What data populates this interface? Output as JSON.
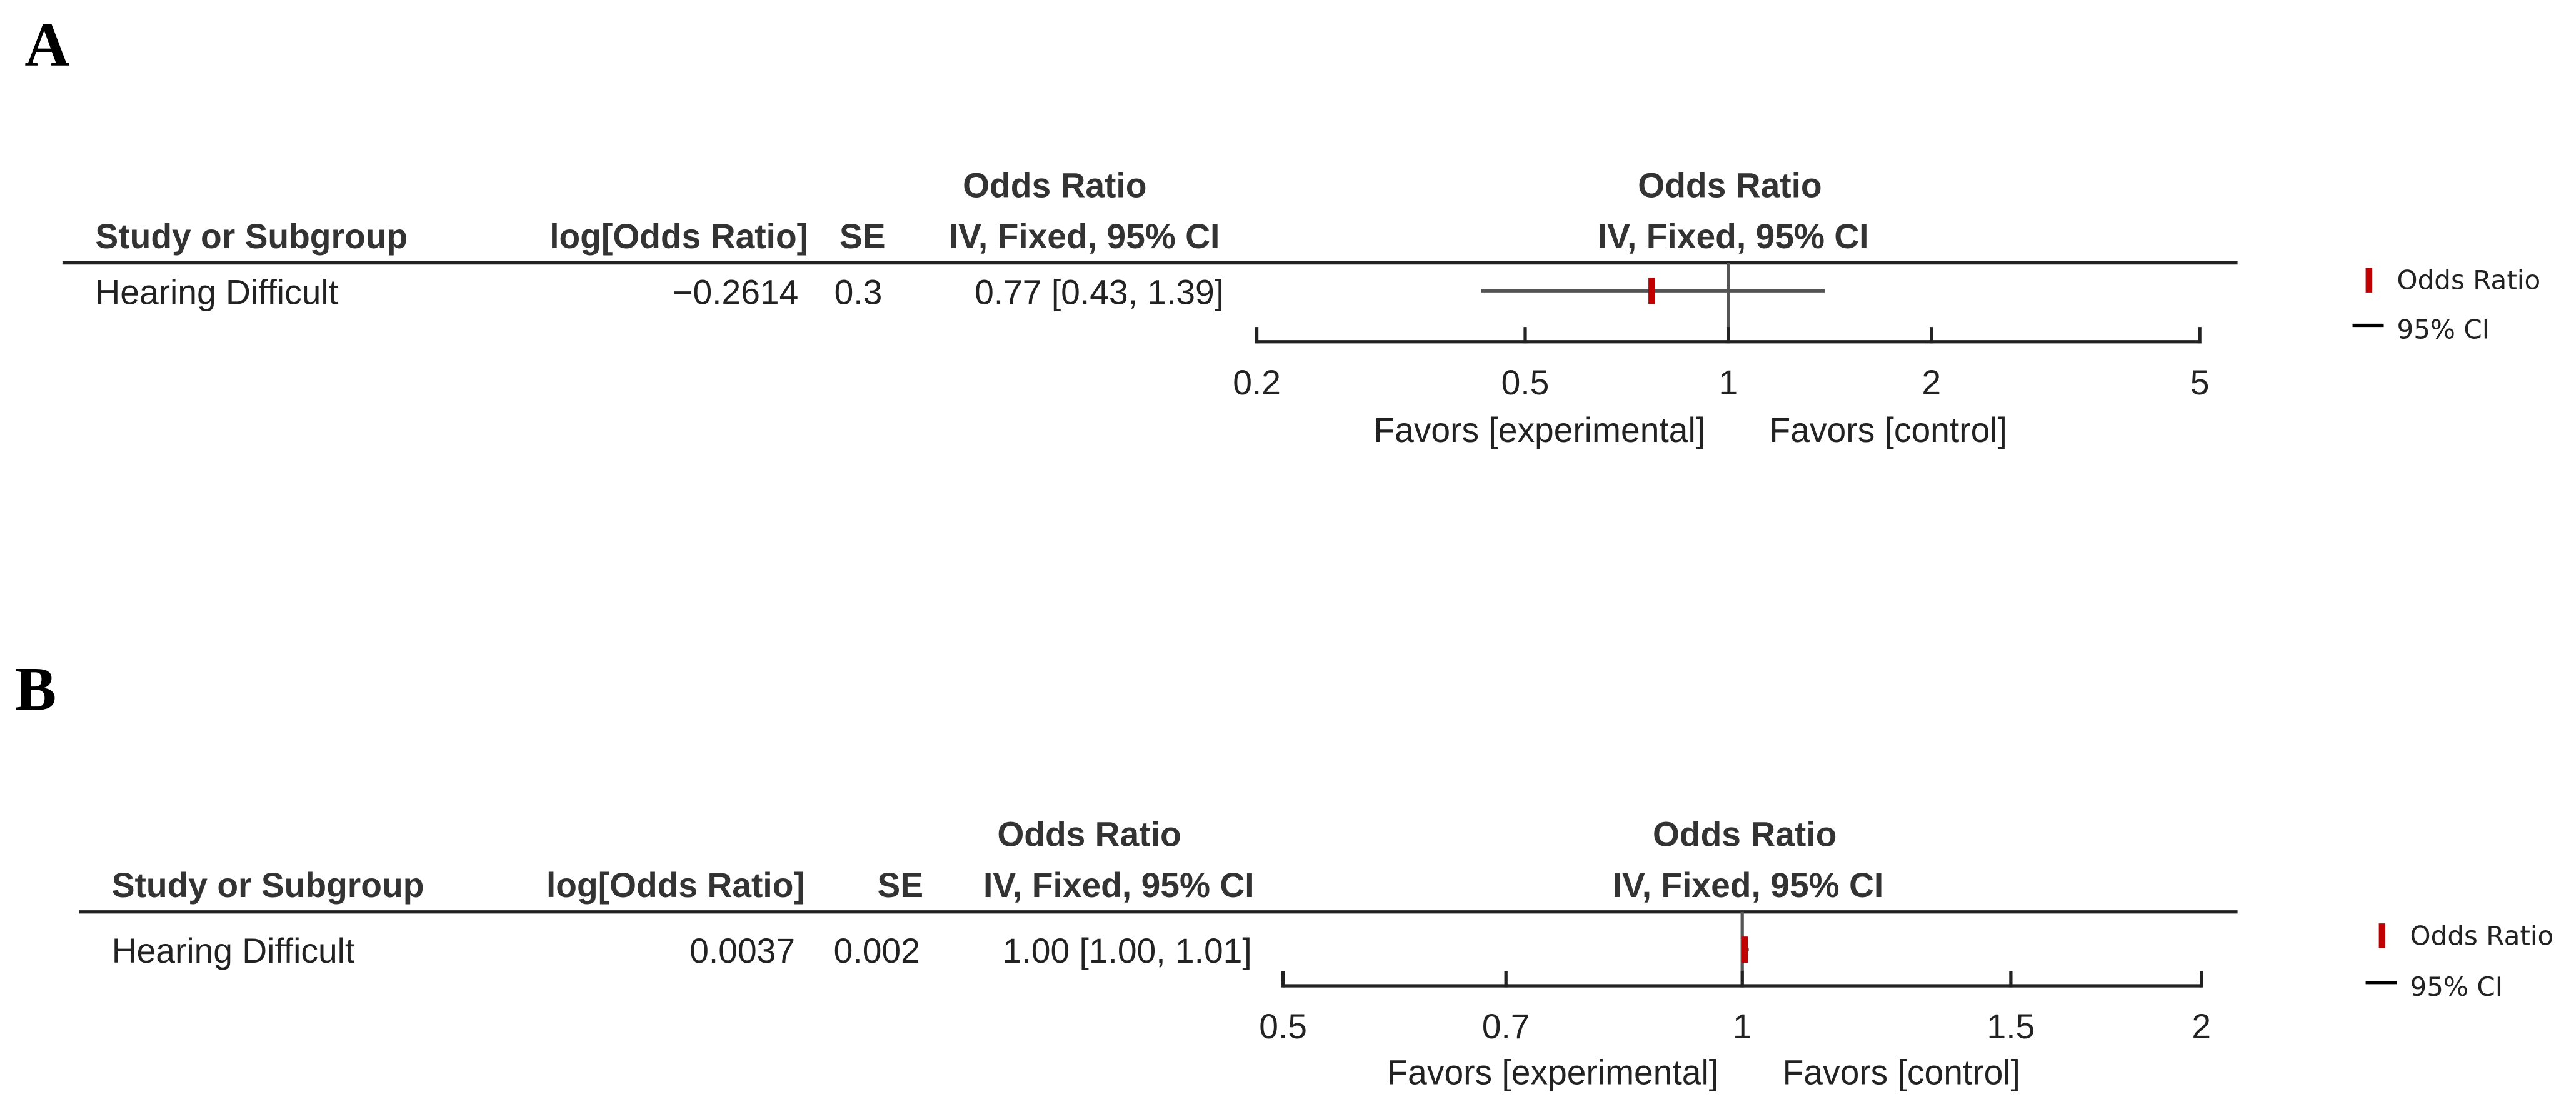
{
  "chart_data": [
    {
      "type": "forest",
      "panel_label": "A",
      "columns": [
        "Study or Subgroup",
        "log[Odds Ratio]",
        "SE"
      ],
      "estimate_header": [
        "Odds Ratio",
        "IV, Fixed, 95% CI"
      ],
      "plot_header": [
        "Odds Ratio",
        "IV, Fixed, 95% CI"
      ],
      "rows": [
        {
          "study": "Hearing Difficult",
          "log_or": "−0.2614",
          "se": 0.3,
          "estimate_label": "0.77 [0.43, 1.39]",
          "or": 0.77,
          "ci_low": 0.43,
          "ci_high": 1.39
        }
      ],
      "log_scale": true,
      "xlim": [
        0.2,
        5
      ],
      "xticks": [
        0.2,
        0.5,
        1,
        2,
        5
      ],
      "null_value": 1,
      "favors": [
        "Favors [experimental]",
        "Favors [control]"
      ],
      "legend": {
        "estimate": "Odds Ratio",
        "ci": "95% CI"
      },
      "marker_color": "#c00000",
      "ci_color": "#555555"
    },
    {
      "type": "forest",
      "panel_label": "B",
      "columns": [
        "Study or Subgroup",
        "log[Odds Ratio]",
        "SE"
      ],
      "estimate_header": [
        "Odds Ratio",
        "IV, Fixed, 95% CI"
      ],
      "plot_header": [
        "Odds Ratio",
        "IV, Fixed, 95% CI"
      ],
      "rows": [
        {
          "study": "Hearing Difficult",
          "log_or": 0.0037,
          "se": 0.002,
          "estimate_label": "1.00 [1.00, 1.01]",
          "or": 1.0037,
          "ci_low": 1.0,
          "ci_high": 1.01
        }
      ],
      "log_scale": true,
      "xlim": [
        0.5,
        2
      ],
      "xticks": [
        0.5,
        0.7,
        1,
        1.5,
        2
      ],
      "null_value": 1,
      "favors": [
        "Favors [experimental]",
        "Favors [control]"
      ],
      "legend": {
        "estimate": "Odds Ratio",
        "ci": "95% CI"
      },
      "marker_color": "#c00000",
      "ci_color": "#555555"
    }
  ]
}
